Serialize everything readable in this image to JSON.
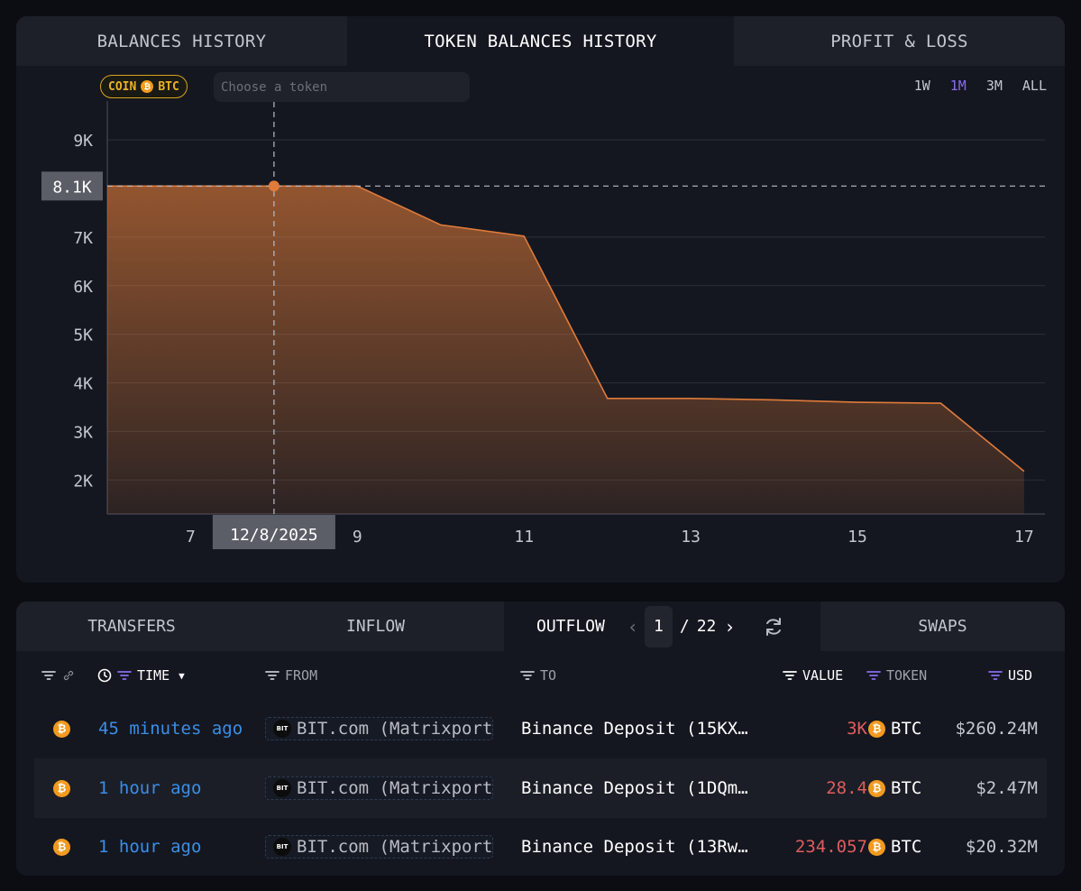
{
  "chart_tabs": [
    "BALANCES HISTORY",
    "TOKEN BALANCES HISTORY",
    "PROFIT & LOSS"
  ],
  "coin_badge": {
    "label": "COIN",
    "token": "BTC",
    "color": "#e8b325"
  },
  "token_search": {
    "placeholder": "Choose a token",
    "value": ""
  },
  "ranges": [
    "1W",
    "1M",
    "3M",
    "ALL"
  ],
  "selected_range": "1M",
  "accent_color": "#8b6cf0",
  "series_color": "#e07b39",
  "crosshair": {
    "value_label": "8.1K",
    "date_label": "12/8/2025"
  },
  "chart_data": {
    "type": "area",
    "x": [
      6,
      7,
      8,
      9,
      10,
      11,
      12,
      13,
      14,
      15,
      16,
      17
    ],
    "values": [
      8050,
      8050,
      8050,
      8050,
      7250,
      7020,
      3680,
      3680,
      3650,
      3600,
      3580,
      2180
    ],
    "xlim": [
      6,
      17.25
    ],
    "ylim": [
      1300,
      9800
    ],
    "x_ticks": [
      7,
      9,
      11,
      13,
      15,
      17
    ],
    "x_tick_labels": [
      "7",
      "9",
      "11",
      "13",
      "15",
      "17"
    ],
    "y_ticks": [
      2000,
      3000,
      4000,
      5000,
      6000,
      7000,
      9000
    ],
    "y_tick_labels": [
      "2K",
      "3K",
      "4K",
      "5K",
      "6K",
      "7K",
      "9K"
    ],
    "hover_x": 8,
    "hover_y": 8050,
    "grid": true,
    "title": "",
    "xlabel": "",
    "ylabel": ""
  },
  "table_tabs": {
    "transfers": "TRANSFERS",
    "inflow": "INFLOW",
    "outflow": "OUTFLOW",
    "swaps": "SWAPS"
  },
  "pager": {
    "current": "1",
    "separator": "/",
    "total": "22"
  },
  "columns": {
    "time": "TIME",
    "from": "FROM",
    "to": "TO",
    "value": "VALUE",
    "token": "TOKEN",
    "usd": "USD"
  },
  "rows": [
    {
      "time": "45 minutes ago",
      "from": "BIT.com (Matrixport",
      "to": "Binance Deposit (15KX…",
      "value": "3K",
      "token": "BTC",
      "usd": "$260.24M"
    },
    {
      "time": "1 hour ago",
      "from": "BIT.com (Matrixport",
      "to": "Binance Deposit (1DQm…",
      "value": "28.4",
      "token": "BTC",
      "usd": "$2.47M"
    },
    {
      "time": "1 hour ago",
      "from": "BIT.com (Matrixport",
      "to": "Binance Deposit (13Rw…",
      "value": "234.057",
      "token": "BTC",
      "usd": "$20.32M"
    }
  ]
}
